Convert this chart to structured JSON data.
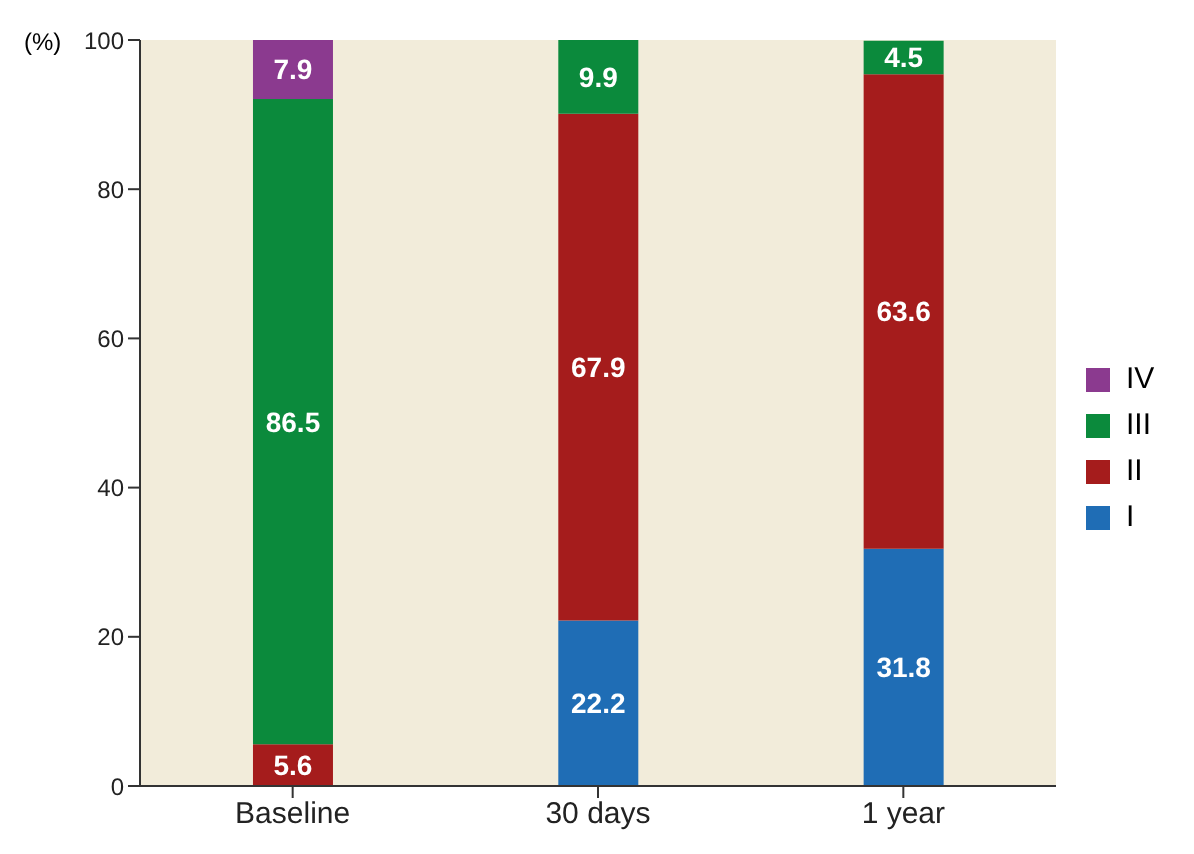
{
  "chart_data": {
    "type": "bar",
    "stacked": true,
    "ylabel": "(%)",
    "categories": [
      "Baseline",
      "30 days",
      "1 year"
    ],
    "series": [
      {
        "name": "I",
        "color": "#1f6db5",
        "values": [
          null,
          22.2,
          31.8
        ]
      },
      {
        "name": "II",
        "color": "#a51c1c",
        "values": [
          5.6,
          67.9,
          63.6
        ]
      },
      {
        "name": "III",
        "color": "#0b8a3c",
        "values": [
          86.5,
          9.9,
          4.5
        ]
      },
      {
        "name": "IV",
        "color": "#8b3a8f",
        "values": [
          7.9,
          null,
          null
        ]
      }
    ],
    "ylim": [
      0,
      100
    ],
    "yticks": [
      0,
      20,
      40,
      60,
      80,
      100
    ],
    "data_labels": true,
    "legend": "right",
    "grid": false
  }
}
